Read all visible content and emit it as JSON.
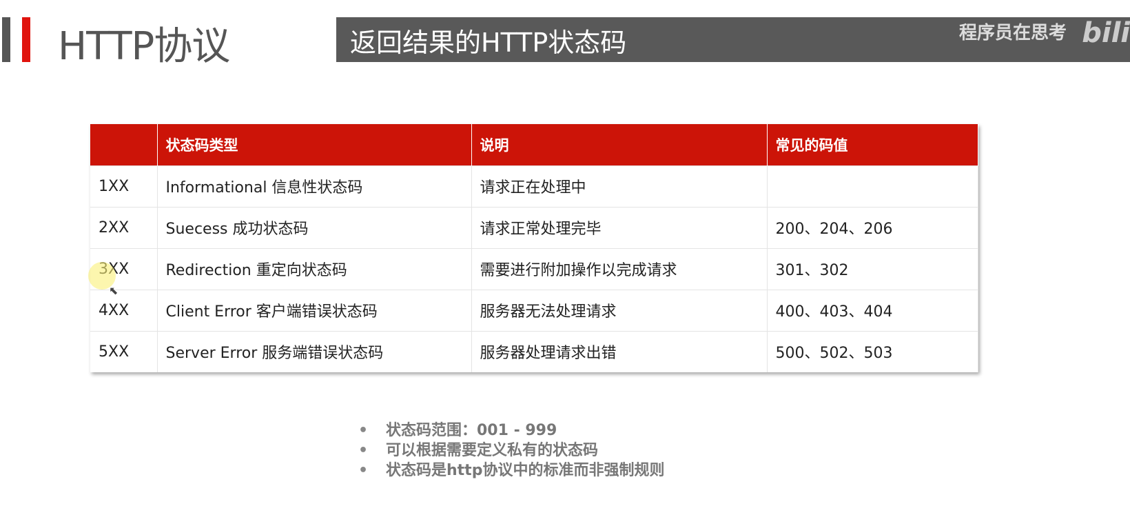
{
  "header": {
    "title": "HTTP协议",
    "subtitle": "返回结果的HTTP状态码",
    "brand": "程序员在思考",
    "logo": "bilibili"
  },
  "table": {
    "headers": [
      "",
      "状态码类型",
      "说明",
      "常见的码值"
    ],
    "rows": [
      [
        "1XX",
        "Informational 信息性状态码",
        "请求正在处理中",
        ""
      ],
      [
        "2XX",
        "Suecess 成功状态码",
        "请求正常处理完毕",
        "200、204、206"
      ],
      [
        "3XX",
        "Redirection 重定向状态码",
        "需要进行附加操作以完成请求",
        "301、302"
      ],
      [
        "4XX",
        "Client Error 客户端错误状态码",
        "服务器无法处理请求",
        "400、403、404"
      ],
      [
        "5XX",
        "Server Error 服务端错误状态码",
        "服务器处理请求出错",
        "500、502、503"
      ]
    ]
  },
  "notes": [
    "状态码范围：001 - 999",
    "可以根据需要定义私有的状态码",
    "状态码是http协议中的标准而非强制规则"
  ],
  "colors": {
    "accent": "#cc1408",
    "banner": "#595959"
  }
}
